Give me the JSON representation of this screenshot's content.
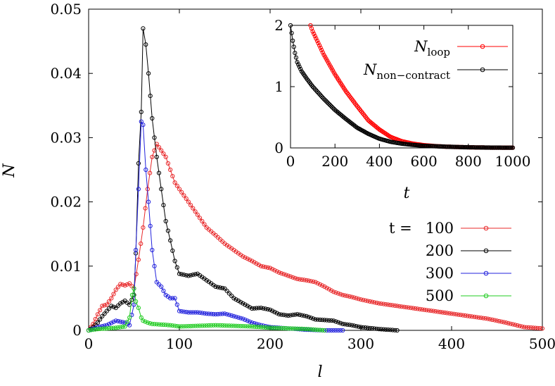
{
  "chart_data": [
    {
      "type": "line",
      "xlabel": "l",
      "ylabel": "N",
      "xlim": [
        0,
        500
      ],
      "ylim": [
        0,
        0.05
      ],
      "x_ticks": [
        "0",
        "100",
        "200",
        "300",
        "400",
        "500"
      ],
      "y_ticks": [
        "0",
        "0.01",
        "0.02",
        "0.03",
        "0.04",
        "0.05"
      ],
      "grid": false,
      "legend": "right",
      "legend_prefix": "t =",
      "series": [
        {
          "name": "100",
          "color": "#e8282a",
          "x": [
            0,
            5,
            10,
            15,
            20,
            25,
            30,
            35,
            40,
            45,
            50,
            55,
            60,
            65,
            70,
            75,
            80,
            85,
            90,
            95,
            100,
            110,
            120,
            130,
            140,
            150,
            160,
            170,
            180,
            190,
            200,
            210,
            220,
            230,
            240,
            250,
            260,
            270,
            280,
            290,
            300,
            320,
            340,
            360,
            380,
            400,
            420,
            440,
            460,
            480,
            500
          ],
          "y": [
            0,
            0.001,
            0.0025,
            0.0038,
            0.004,
            0.005,
            0.0063,
            0.0072,
            0.007,
            0.0073,
            0.0065,
            0.011,
            0.016,
            0.022,
            0.027,
            0.029,
            0.028,
            0.027,
            0.025,
            0.023,
            0.022,
            0.02,
            0.018,
            0.016,
            0.0148,
            0.0135,
            0.0125,
            0.0115,
            0.0108,
            0.01,
            0.0097,
            0.009,
            0.0085,
            0.008,
            0.0078,
            0.0075,
            0.0068,
            0.006,
            0.0055,
            0.0052,
            0.0048,
            0.0042,
            0.0038,
            0.0034,
            0.003,
            0.0026,
            0.0022,
            0.0018,
            0.0012,
            0.0005,
            0.0003
          ]
        },
        {
          "name": "200",
          "color": "#000000",
          "x": [
            0,
            5,
            10,
            15,
            20,
            25,
            30,
            35,
            40,
            45,
            50,
            52,
            55,
            58,
            60,
            63,
            66,
            70,
            75,
            80,
            85,
            90,
            95,
            100,
            110,
            120,
            130,
            140,
            150,
            160,
            170,
            180,
            190,
            200,
            210,
            220,
            230,
            240,
            250,
            260,
            270,
            280,
            290,
            300,
            320,
            340
          ],
          "y": [
            0,
            0.0005,
            0.0012,
            0.0022,
            0.003,
            0.0038,
            0.0035,
            0.0042,
            0.0046,
            0.004,
            0.0055,
            0.012,
            0.026,
            0.034,
            0.047,
            0.0445,
            0.04,
            0.033,
            0.027,
            0.022,
            0.017,
            0.014,
            0.0108,
            0.0088,
            0.0085,
            0.0088,
            0.0078,
            0.0068,
            0.0065,
            0.005,
            0.0042,
            0.0034,
            0.0035,
            0.0032,
            0.0025,
            0.0023,
            0.0025,
            0.0022,
            0.0017,
            0.0016,
            0.0015,
            0.001,
            0.0008,
            0.0005,
            0.0002,
            0
          ]
        },
        {
          "name": "300",
          "color": "#2222dd",
          "x": [
            0,
            10,
            20,
            30,
            40,
            45,
            50,
            52,
            55,
            58,
            60,
            63,
            66,
            70,
            75,
            80,
            85,
            90,
            95,
            100,
            110,
            120,
            130,
            140,
            150,
            160,
            170,
            180,
            190,
            200,
            220,
            240,
            260,
            280
          ],
          "y": [
            0,
            0.0005,
            0.0008,
            0.0015,
            0.0012,
            0.0008,
            0.004,
            0.0125,
            0.022,
            0.0325,
            0.032,
            0.025,
            0.02,
            0.0125,
            0.0075,
            0.0068,
            0.0055,
            0.005,
            0.005,
            0.003,
            0.0028,
            0.0028,
            0.0026,
            0.0025,
            0.0026,
            0.0022,
            0.0018,
            0.0012,
            0.0008,
            0.0005,
            0.0003,
            0.0001,
            0,
            0
          ]
        },
        {
          "name": "500",
          "color": "#22cc22",
          "x": [
            0,
            10,
            20,
            30,
            40,
            45,
            48,
            50,
            52,
            55,
            58,
            60,
            65,
            70,
            80,
            90,
            100,
            120,
            140,
            160,
            180,
            200,
            220,
            240,
            260
          ],
          "y": [
            0,
            0.0002,
            0.0003,
            0.0004,
            0.0006,
            0.002,
            0.0055,
            0.0065,
            0.0045,
            0.0035,
            0.002,
            0.0015,
            0.0012,
            0.001,
            0.0009,
            0.0008,
            0.0006,
            0.0007,
            0.0008,
            0.0007,
            0.0006,
            0.0004,
            0.0003,
            0.0002,
            0
          ]
        }
      ]
    },
    {
      "type": "line",
      "xlabel": "t",
      "ylabel": "",
      "xlim": [
        0,
        1000
      ],
      "ylim": [
        0,
        2
      ],
      "x_ticks": [
        "0",
        "200",
        "400",
        "600",
        "800",
        "1000"
      ],
      "y_ticks": [
        "0",
        "1",
        "2"
      ],
      "grid": false,
      "legend": "top-right",
      "series": [
        {
          "name": "N_loop",
          "label_main": "N",
          "label_sub": "loop",
          "color": "#ff0000",
          "x": [
            90,
            100,
            150,
            200,
            250,
            300,
            350,
            400,
            450,
            500,
            550,
            600,
            650,
            700,
            800,
            900,
            1000
          ],
          "y": [
            2.0,
            1.9,
            1.52,
            1.2,
            0.92,
            0.68,
            0.45,
            0.3,
            0.18,
            0.11,
            0.07,
            0.045,
            0.03,
            0.02,
            0.01,
            0.005,
            0.003
          ]
        },
        {
          "name": "N_non-contract",
          "label_main": "N",
          "label_sub": "non−contract",
          "color": "#000000",
          "x": [
            0,
            10,
            20,
            30,
            50,
            75,
            100,
            150,
            200,
            250,
            300,
            350,
            400,
            450,
            500,
            550,
            600,
            700,
            800,
            900,
            1000
          ],
          "y": [
            2.0,
            1.75,
            1.55,
            1.4,
            1.25,
            1.12,
            1.0,
            0.8,
            0.62,
            0.47,
            0.33,
            0.23,
            0.15,
            0.1,
            0.07,
            0.05,
            0.035,
            0.02,
            0.01,
            0.005,
            0.003
          ]
        }
      ]
    }
  ]
}
